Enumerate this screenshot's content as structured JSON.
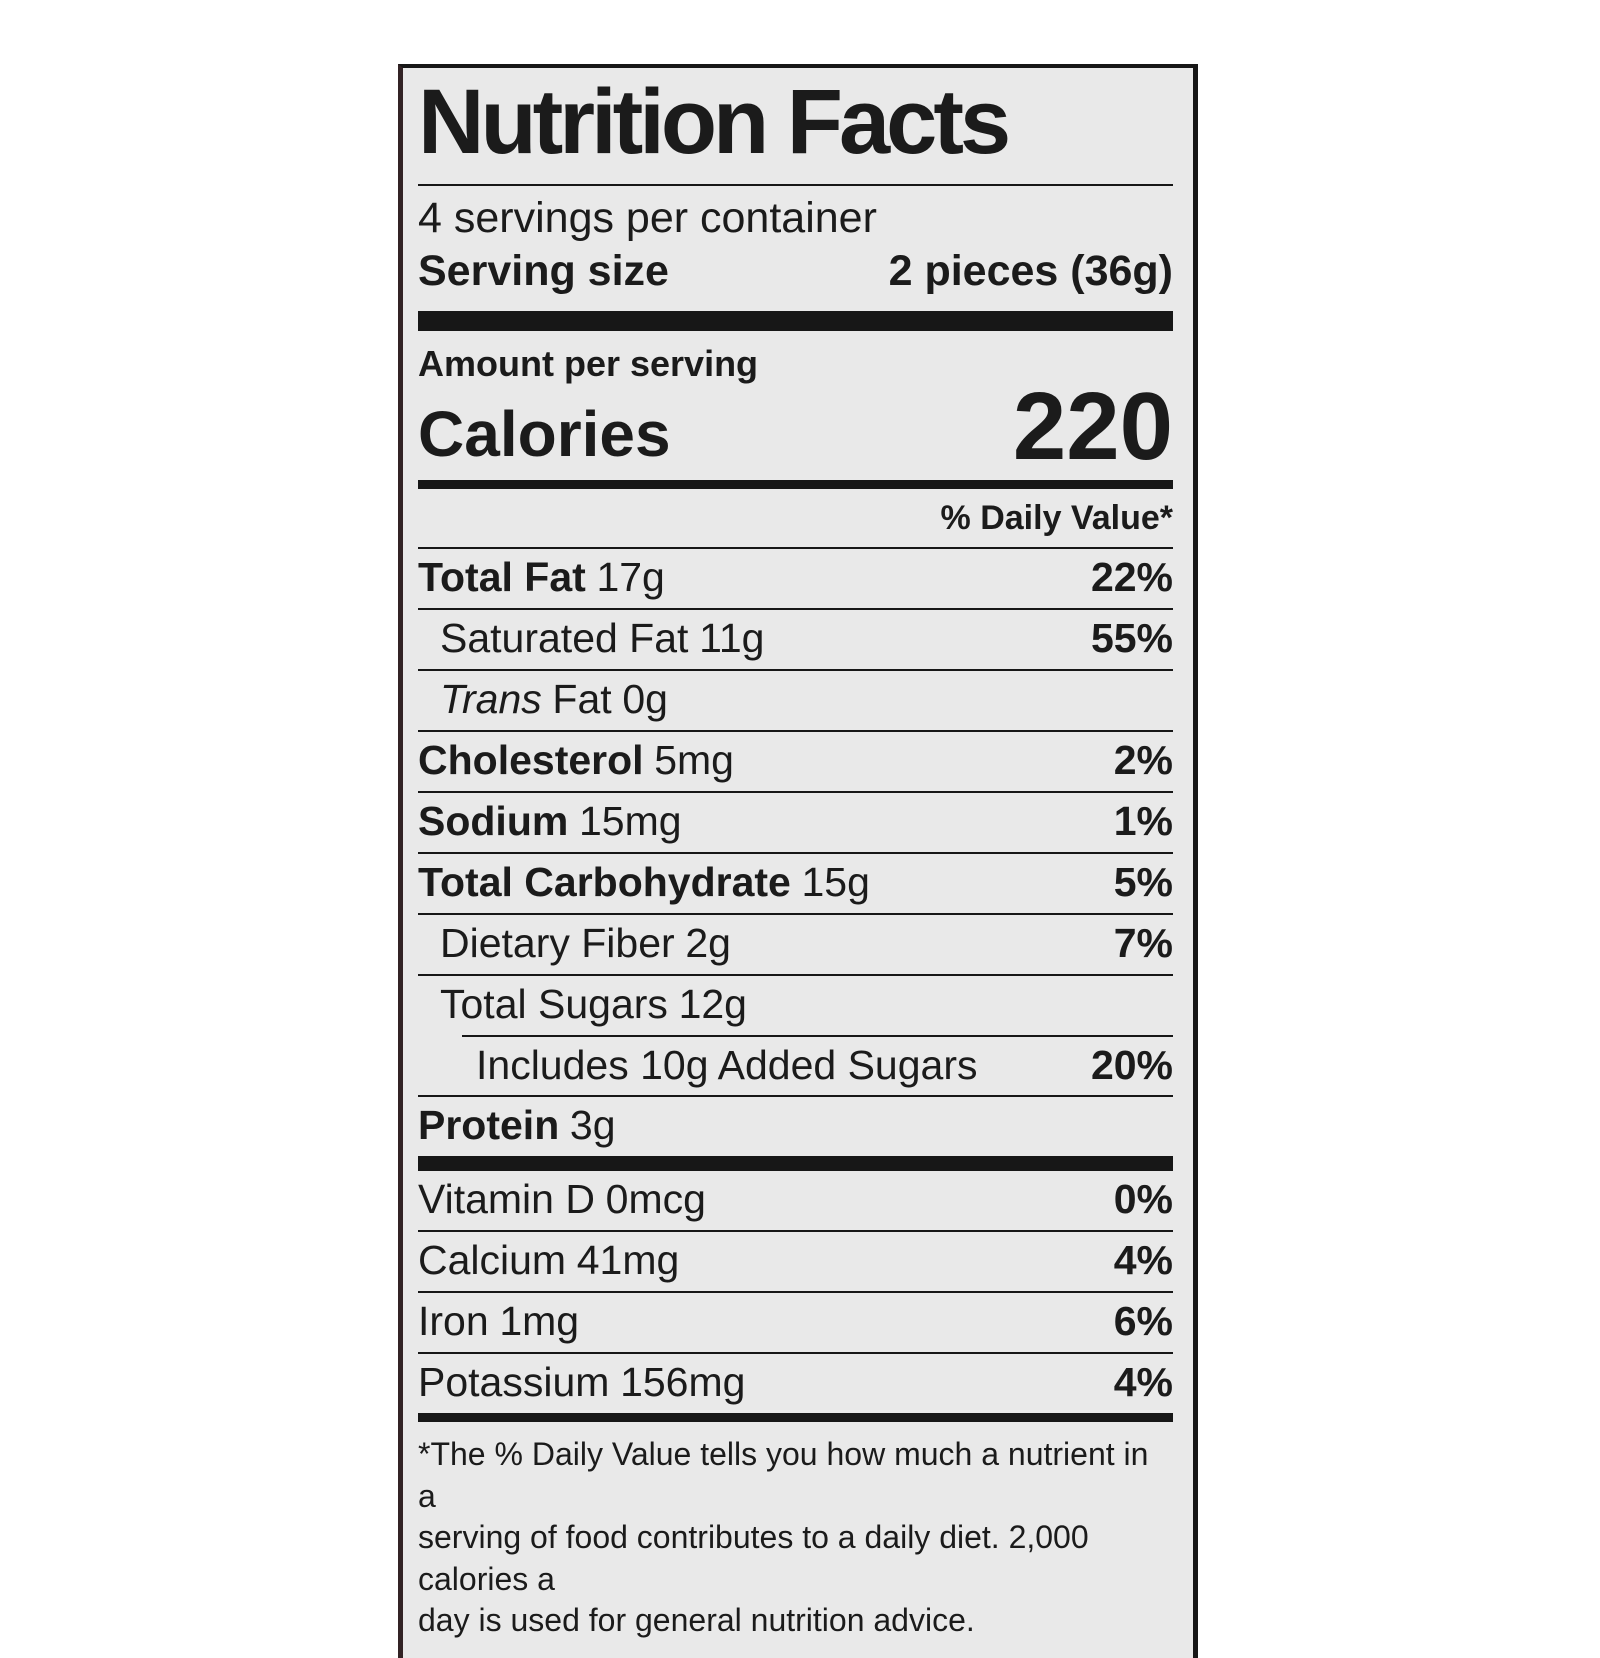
{
  "colors": {
    "page-bg": "#ffffff",
    "label-bg": "#e9e9e9",
    "ink": "#1b1b1b",
    "line": "#171717",
    "left-border": "#322325"
  },
  "label": {
    "title": "Nutrition Facts",
    "servings_per_container": "4 servings per container",
    "serving_size": {
      "label": "Serving size",
      "value": "2 pieces (36g)"
    },
    "amount_per_serving": "Amount per serving",
    "calories": {
      "label": "Calories",
      "value": "220"
    },
    "daily_value_header": "% Daily Value*",
    "rows": [
      {
        "name": "Total Fat",
        "amount": "17g",
        "dv": "22%"
      },
      {
        "name": "Saturated Fat",
        "amount": "11g",
        "dv": "55%"
      },
      {
        "name_italic": "Trans",
        "name": "Fat",
        "amount": "0g",
        "dv": ""
      },
      {
        "name": "Cholesterol",
        "amount": "5mg",
        "dv": "2%"
      },
      {
        "name": "Sodium",
        "amount": "15mg",
        "dv": "1%"
      },
      {
        "name": "Total Carbohydrate",
        "amount": "15g",
        "dv": "5%"
      },
      {
        "name": "Dietary Fiber",
        "amount": "2g",
        "dv": "7%"
      },
      {
        "name": "Total Sugars",
        "amount": "12g",
        "dv": ""
      },
      {
        "name": "Includes 10g Added Sugars",
        "amount": "",
        "dv": "20%"
      },
      {
        "name": "Protein",
        "amount": "3g",
        "dv": ""
      }
    ],
    "micronutrients": [
      {
        "name": "Vitamin D",
        "amount": "0mcg",
        "dv": "0%"
      },
      {
        "name": "Calcium",
        "amount": "41mg",
        "dv": "4%"
      },
      {
        "name": "Iron",
        "amount": "1mg",
        "dv": "6%"
      },
      {
        "name": "Potassium",
        "amount": "156mg",
        "dv": "4%"
      }
    ],
    "footnote_lines": [
      "*The % Daily Value tells you how much a nutrient in a",
      "serving of food contributes to a daily diet. 2,000 calories a",
      "day is used for general nutrition advice."
    ]
  }
}
